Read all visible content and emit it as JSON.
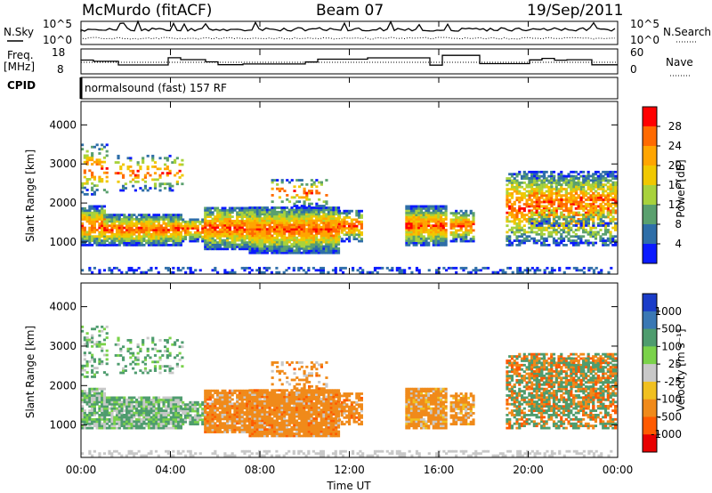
{
  "header": {
    "station": "McMurdo (fitACF)",
    "beam": "Beam 07",
    "date": "19/Sep/2011"
  },
  "top_panels": {
    "nsky_label": "N.Sky",
    "nsky_ticks": [
      "10^5",
      "10^0"
    ],
    "nsearch_label": "N.Search",
    "nsearch_ticks": [
      "10^5",
      "10^0"
    ],
    "freq_label_1": "Freq.",
    "freq_label_2": "[MHz]",
    "freq_ticks": [
      "18",
      "8"
    ],
    "nave_label": "Nave",
    "nave_ticks": [
      "60",
      "0"
    ],
    "cpid_label": "CPID",
    "cpid_value": "normalsound (fast) 157 RF"
  },
  "chart_data": [
    {
      "type": "heatmap",
      "panel": "power",
      "ylabel": "Slant Range [km]",
      "xlabel": "",
      "yticks": [
        "4000",
        "3000",
        "2000",
        "1000"
      ],
      "ylim": [
        180,
        4600
      ],
      "xlim": [
        0,
        24
      ],
      "colorbar": {
        "label": "Power [dB]",
        "ticks": [
          "28",
          "24",
          "20",
          "16",
          "12",
          "8",
          "4"
        ],
        "colors": [
          "#ff0000",
          "#ff6a00",
          "#ffa500",
          "#f0c800",
          "#a8d23c",
          "#5aa06e",
          "#2e6ea8",
          "#0a1aff"
        ]
      }
    },
    {
      "type": "heatmap",
      "panel": "velocity",
      "ylabel": "Slant Range [km]",
      "xlabel": "Time UT",
      "xticks": [
        "00:00",
        "04:00",
        "08:00",
        "12:00",
        "16:00",
        "20:00",
        "00:00"
      ],
      "yticks": [
        "4000",
        "3000",
        "2000",
        "1000"
      ],
      "ylim": [
        180,
        4600
      ],
      "xlim": [
        0,
        24
      ],
      "colorbar": {
        "label": "Velocity [m s⁻¹]",
        "ticks": [
          "1000",
          "500",
          "100",
          "25",
          "-25",
          "-100",
          "-500",
          "-1000"
        ],
        "colors": [
          "#1a3cc8",
          "#3a78b4",
          "#4e9c6e",
          "#7ad24a",
          "#c8c8c8",
          "#f0c020",
          "#f08a1a",
          "#ff5a00",
          "#e80000"
        ]
      }
    }
  ]
}
